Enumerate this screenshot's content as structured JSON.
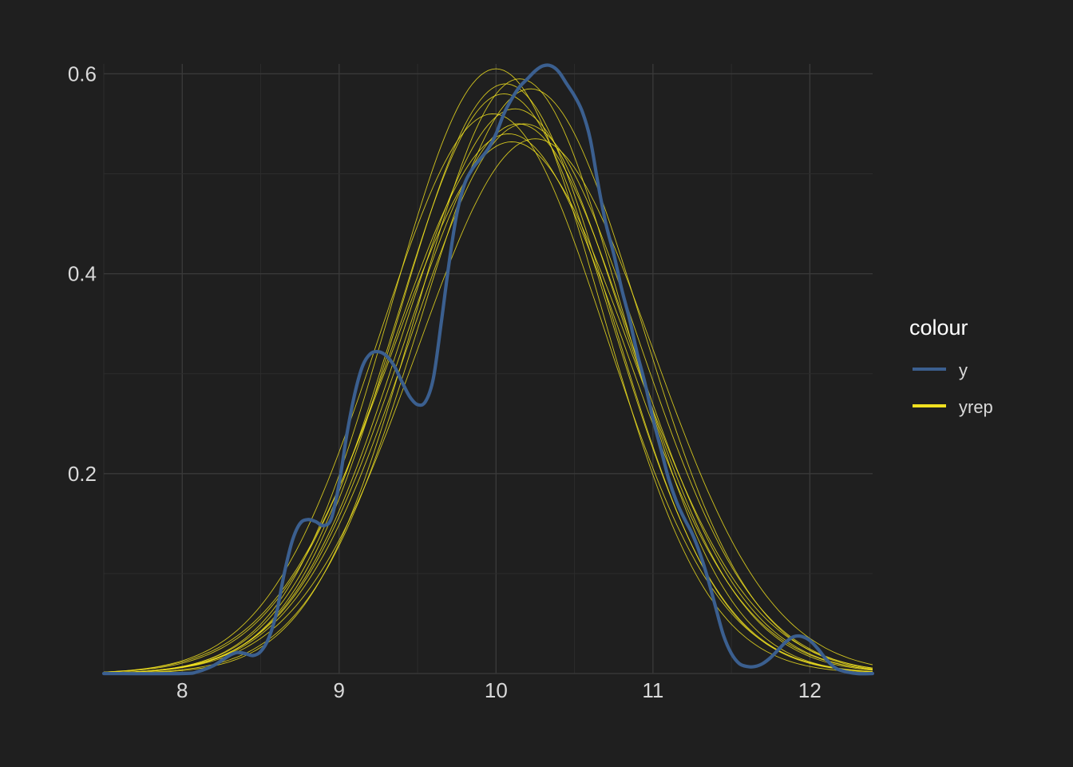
{
  "chart_data": {
    "type": "line",
    "title": "",
    "xlabel": "",
    "ylabel": "",
    "xlim": [
      7.5,
      12.4
    ],
    "ylim": [
      0,
      0.6
    ],
    "x_ticks": [
      8,
      9,
      10,
      11,
      12
    ],
    "x_tick_labels": [
      "8",
      "9",
      "10",
      "11",
      "12"
    ],
    "y_ticks": [
      0.2,
      0.4,
      0.6
    ],
    "y_tick_labels": [
      "0.2",
      "0.4",
      "0.6"
    ],
    "grid": true,
    "legend": {
      "title": "colour",
      "position": "right",
      "entries": [
        {
          "label": "y",
          "color": "#3b5f8f"
        },
        {
          "label": "yrep",
          "color": "#f0e020"
        }
      ]
    },
    "series": [
      {
        "name": "y",
        "color": "#3b5f8f",
        "points": [
          [
            7.5,
            0
          ],
          [
            8.0,
            0
          ],
          [
            8.1,
            0.002
          ],
          [
            8.2,
            0.008
          ],
          [
            8.3,
            0.018
          ],
          [
            8.35,
            0.021
          ],
          [
            8.4,
            0.02
          ],
          [
            8.45,
            0.018
          ],
          [
            8.5,
            0.022
          ],
          [
            8.55,
            0.035
          ],
          [
            8.6,
            0.06
          ],
          [
            8.65,
            0.1
          ],
          [
            8.7,
            0.132
          ],
          [
            8.75,
            0.15
          ],
          [
            8.8,
            0.154
          ],
          [
            8.85,
            0.152
          ],
          [
            8.9,
            0.148
          ],
          [
            8.95,
            0.155
          ],
          [
            9.0,
            0.19
          ],
          [
            9.05,
            0.24
          ],
          [
            9.1,
            0.28
          ],
          [
            9.15,
            0.308
          ],
          [
            9.2,
            0.32
          ],
          [
            9.25,
            0.322
          ],
          [
            9.3,
            0.318
          ],
          [
            9.35,
            0.308
          ],
          [
            9.4,
            0.292
          ],
          [
            9.45,
            0.277
          ],
          [
            9.5,
            0.269
          ],
          [
            9.55,
            0.272
          ],
          [
            9.6,
            0.295
          ],
          [
            9.65,
            0.35
          ],
          [
            9.7,
            0.41
          ],
          [
            9.75,
            0.46
          ],
          [
            9.8,
            0.49
          ],
          [
            9.85,
            0.505
          ],
          [
            9.9,
            0.515
          ],
          [
            9.95,
            0.525
          ],
          [
            10.0,
            0.54
          ],
          [
            10.05,
            0.56
          ],
          [
            10.1,
            0.575
          ],
          [
            10.15,
            0.587
          ],
          [
            10.2,
            0.595
          ],
          [
            10.25,
            0.603
          ],
          [
            10.3,
            0.608
          ],
          [
            10.35,
            0.608
          ],
          [
            10.4,
            0.602
          ],
          [
            10.45,
            0.59
          ],
          [
            10.5,
            0.578
          ],
          [
            10.55,
            0.562
          ],
          [
            10.6,
            0.535
          ],
          [
            10.65,
            0.49
          ],
          [
            10.7,
            0.45
          ],
          [
            10.75,
            0.42
          ],
          [
            10.8,
            0.385
          ],
          [
            10.85,
            0.355
          ],
          [
            10.9,
            0.32
          ],
          [
            10.95,
            0.29
          ],
          [
            11.0,
            0.255
          ],
          [
            11.05,
            0.225
          ],
          [
            11.1,
            0.195
          ],
          [
            11.15,
            0.172
          ],
          [
            11.2,
            0.155
          ],
          [
            11.25,
            0.14
          ],
          [
            11.3,
            0.12
          ],
          [
            11.35,
            0.095
          ],
          [
            11.4,
            0.066
          ],
          [
            11.45,
            0.038
          ],
          [
            11.5,
            0.02
          ],
          [
            11.55,
            0.01
          ],
          [
            11.6,
            0.007
          ],
          [
            11.65,
            0.007
          ],
          [
            11.7,
            0.01
          ],
          [
            11.75,
            0.016
          ],
          [
            11.8,
            0.024
          ],
          [
            11.85,
            0.032
          ],
          [
            11.9,
            0.037
          ],
          [
            11.95,
            0.037
          ],
          [
            12.0,
            0.033
          ],
          [
            12.05,
            0.025
          ],
          [
            12.1,
            0.015
          ],
          [
            12.15,
            0.007
          ],
          [
            12.2,
            0.003
          ],
          [
            12.3,
            0
          ],
          [
            12.4,
            0
          ]
        ]
      },
      {
        "name": "yrep",
        "color": "#f0e020",
        "draws": [
          {
            "mu": 10.12,
            "sigma": 0.71,
            "peak": 0.565
          },
          {
            "mu": 10.05,
            "sigma": 0.69,
            "peak": 0.58
          },
          {
            "mu": 10.18,
            "sigma": 0.73,
            "peak": 0.55
          },
          {
            "mu": 10.0,
            "sigma": 0.67,
            "peak": 0.605
          },
          {
            "mu": 10.15,
            "sigma": 0.66,
            "peak": 0.595
          },
          {
            "mu": 10.08,
            "sigma": 0.74,
            "peak": 0.54
          },
          {
            "mu": 10.22,
            "sigma": 0.7,
            "peak": 0.585
          },
          {
            "mu": 9.98,
            "sigma": 0.72,
            "peak": 0.56
          },
          {
            "mu": 10.1,
            "sigma": 0.76,
            "peak": 0.532
          },
          {
            "mu": 10.25,
            "sigma": 0.75,
            "peak": 0.535
          },
          {
            "mu": 10.06,
            "sigma": 0.68,
            "peak": 0.59
          },
          {
            "mu": 10.14,
            "sigma": 0.72,
            "peak": 0.55
          }
        ]
      }
    ]
  }
}
